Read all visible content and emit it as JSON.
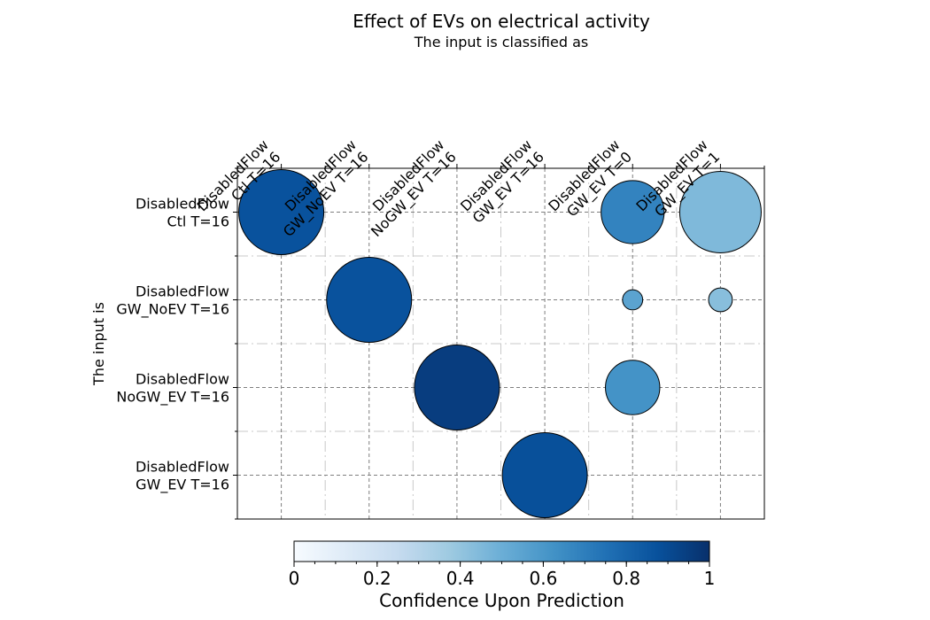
{
  "chart_data": {
    "type": "scatter",
    "title": "Effect of EVs on electrical activity",
    "subtitle": "The input is classified as",
    "xlabel": "The input is classified as",
    "ylabel": "The input is",
    "columns": [
      [
        "DisabledFlow",
        "Ctl T=16"
      ],
      [
        "DisabledFlow",
        "GW_NoEV T=16"
      ],
      [
        "DisabledFlow",
        "NoGW_EV T=16"
      ],
      [
        "DisabledFlow",
        "GW_EV T=16"
      ],
      [
        "DisabledFlow",
        "GW_EV T=0"
      ],
      [
        "DisabledFlow",
        "GW_EV T=1"
      ]
    ],
    "rows": [
      [
        "DisabledFlow",
        "Ctl T=16"
      ],
      [
        "DisabledFlow",
        "GW_NoEV T=16"
      ],
      [
        "DisabledFlow",
        "NoGW_EV T=16"
      ],
      [
        "DisabledFlow",
        "GW_EV T=16"
      ]
    ],
    "points": [
      {
        "row": 0,
        "col": 0,
        "size": 0.97,
        "confidence": 0.87
      },
      {
        "row": 0,
        "col": 4,
        "size": 0.72,
        "confidence": 0.68
      },
      {
        "row": 0,
        "col": 5,
        "size": 0.93,
        "confidence": 0.45
      },
      {
        "row": 1,
        "col": 1,
        "size": 0.97,
        "confidence": 0.87
      },
      {
        "row": 1,
        "col": 4,
        "size": 0.23,
        "confidence": 0.55
      },
      {
        "row": 1,
        "col": 5,
        "size": 0.27,
        "confidence": 0.43
      },
      {
        "row": 2,
        "col": 2,
        "size": 0.97,
        "confidence": 0.95
      },
      {
        "row": 2,
        "col": 4,
        "size": 0.62,
        "confidence": 0.62
      },
      {
        "row": 3,
        "col": 3,
        "size": 0.97,
        "confidence": 0.88
      }
    ],
    "colorbar": {
      "label": "Confidence Upon Prediction",
      "colormap": "Blues",
      "range": [
        0,
        1
      ],
      "ticks": [
        "0",
        "0.2",
        "0.4",
        "0.6",
        "0.8",
        "1"
      ]
    },
    "grid": true
  }
}
